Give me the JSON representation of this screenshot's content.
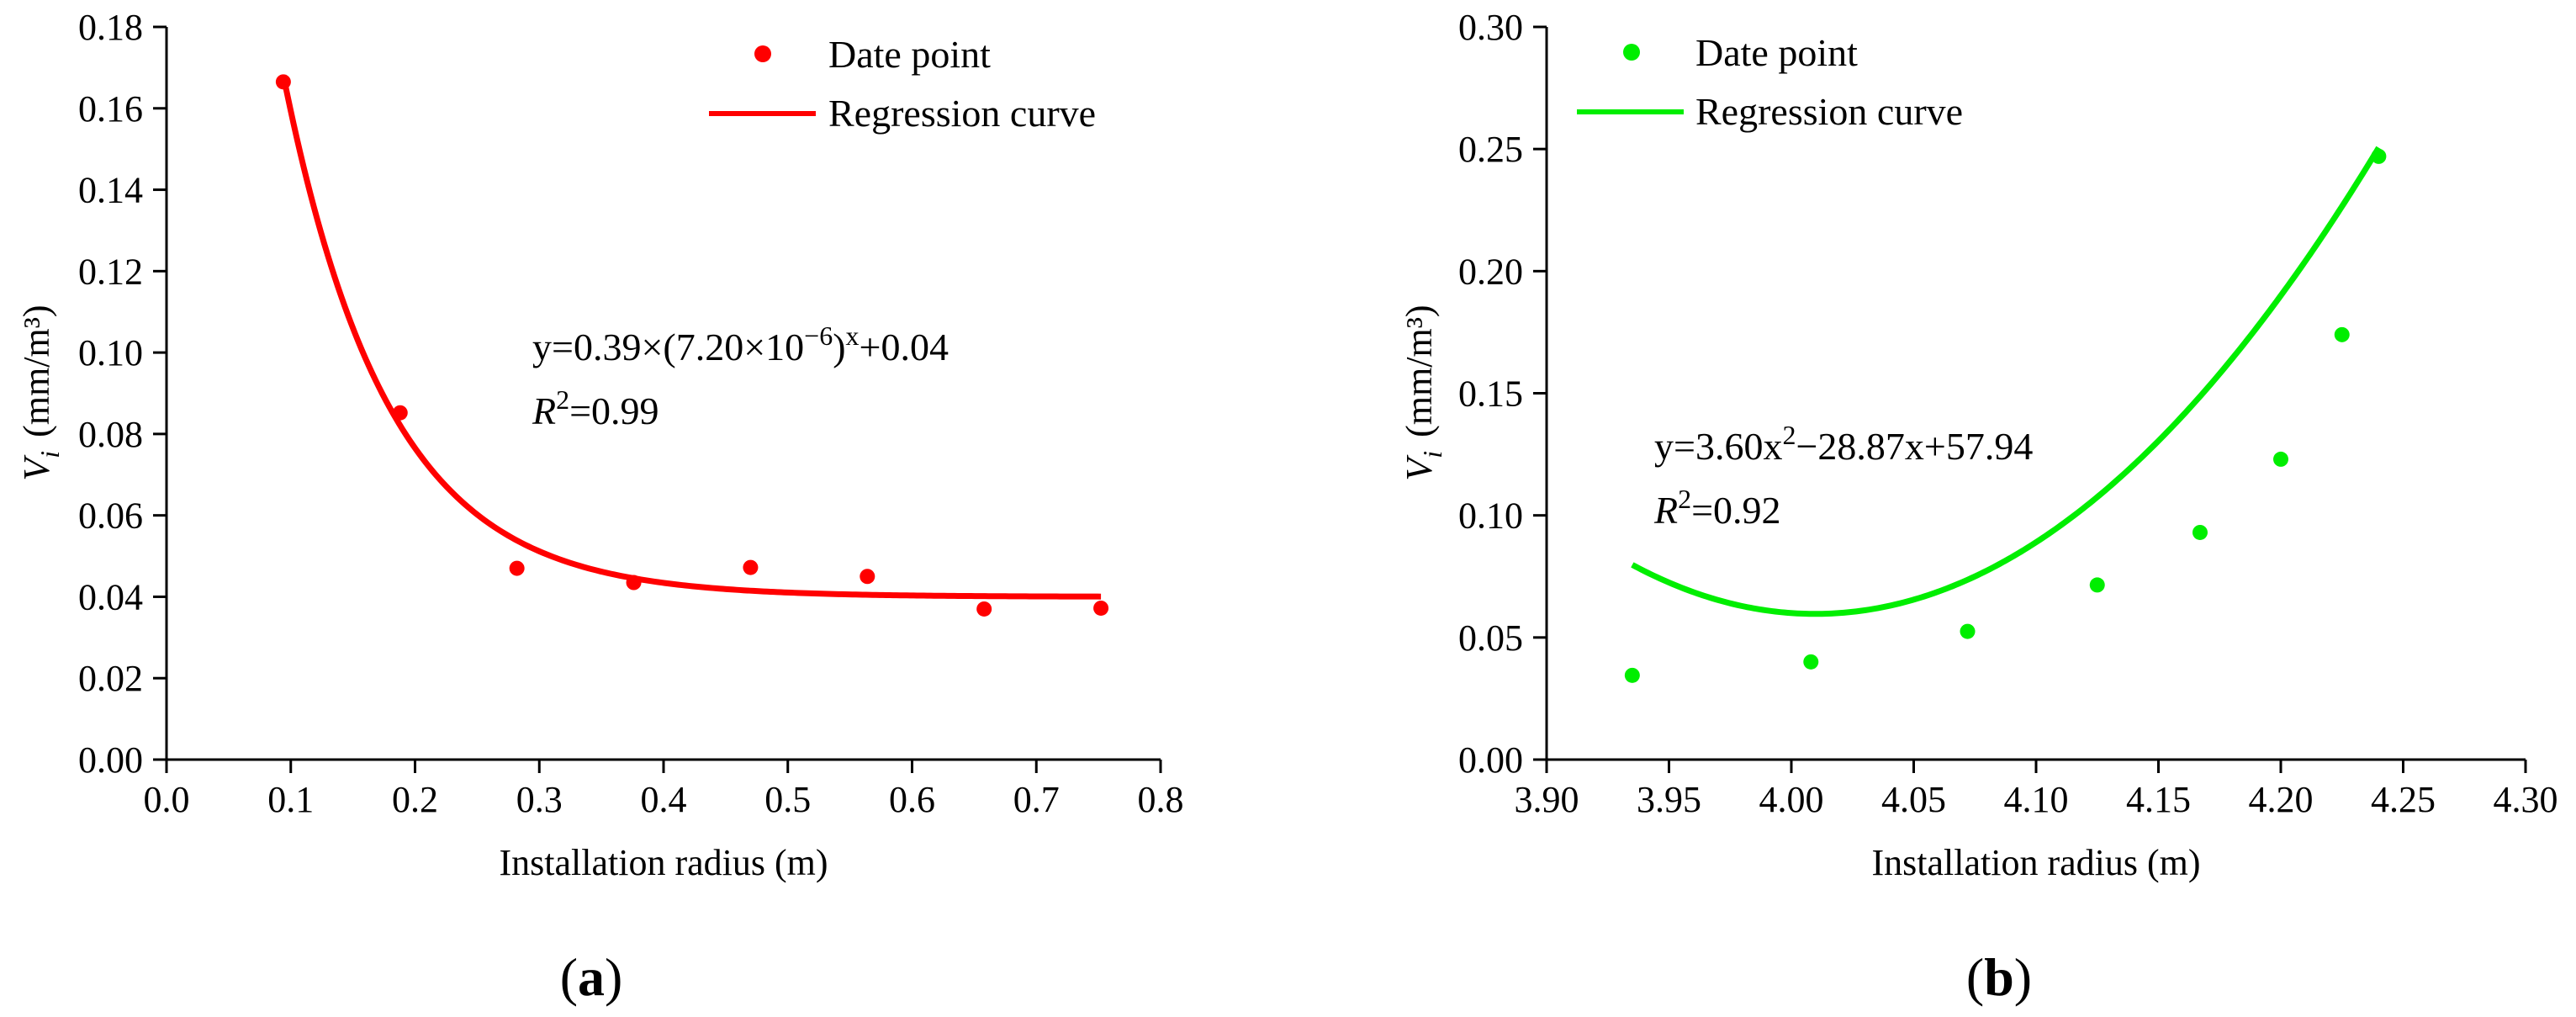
{
  "chart_data": [
    {
      "type": "scatter",
      "panel_label": "a",
      "color": "#ff0000",
      "xlabel": "Installation radius (m)",
      "ylabel": {
        "var": "V",
        "sub": "i",
        "unit": "(mm/m³)"
      },
      "xlim": [
        0.0,
        0.8
      ],
      "ylim": [
        0.0,
        0.18
      ],
      "xticks": [
        0.0,
        0.1,
        0.2,
        0.3,
        0.4,
        0.5,
        0.6,
        0.7,
        0.8
      ],
      "yticks": [
        0.0,
        0.02,
        0.04,
        0.06,
        0.08,
        0.1,
        0.12,
        0.14,
        0.16,
        0.18
      ],
      "xtick_labels": [
        "0.0",
        "0.1",
        "0.2",
        "0.3",
        "0.4",
        "0.5",
        "0.6",
        "0.7",
        "0.8"
      ],
      "ytick_labels": [
        "0.00",
        "0.02",
        "0.04",
        "0.06",
        "0.08",
        "0.10",
        "0.12",
        "0.14",
        "0.16",
        "0.18"
      ],
      "legend": {
        "position": "top-right",
        "points_label": "Date point",
        "curve_label": "Regression curve"
      },
      "points": [
        [
          0.094,
          0.1665
        ],
        [
          0.188,
          0.0852
        ],
        [
          0.282,
          0.047
        ],
        [
          0.376,
          0.0435
        ],
        [
          0.47,
          0.0472
        ],
        [
          0.564,
          0.045
        ],
        [
          0.658,
          0.037
        ],
        [
          0.752,
          0.0372
        ]
      ],
      "curve": {
        "model": "exponential",
        "x_range": [
          0.094,
          0.752
        ],
        "params": {
          "a": 0.39,
          "b": 7.2e-06,
          "c": 0.04
        }
      },
      "annotation": {
        "eq_main": "y=0.39×(7.20×10",
        "eq_exp": "−6",
        "eq_after": ")",
        "eq_x": "x",
        "eq_tail": "+0.04",
        "r2_label": "R",
        "r2_exp": "2",
        "r2_value": "=0.99"
      }
    },
    {
      "type": "scatter",
      "panel_label": "b",
      "color": "#00ee00",
      "xlabel": "Installation radius (m)",
      "ylabel": {
        "var": "V",
        "sub": "i",
        "unit": "(mm/m³)"
      },
      "xlim": [
        3.9,
        4.3
      ],
      "ylim": [
        0.0,
        0.3
      ],
      "xticks": [
        3.9,
        3.95,
        4.0,
        4.05,
        4.1,
        4.15,
        4.2,
        4.25,
        4.3
      ],
      "yticks": [
        0.0,
        0.05,
        0.1,
        0.15,
        0.2,
        0.25,
        0.3
      ],
      "xtick_labels": [
        "3.90",
        "3.95",
        "4.00",
        "4.05",
        "4.10",
        "4.15",
        "4.20",
        "4.25",
        "4.30"
      ],
      "ytick_labels": [
        "0.00",
        "0.05",
        "0.10",
        "0.15",
        "0.20",
        "0.25",
        "0.30"
      ],
      "legend": {
        "position": "top-left",
        "points_label": "Date point",
        "curve_label": "Regression curve"
      },
      "points": [
        [
          3.935,
          0.0345
        ],
        [
          4.008,
          0.04
        ],
        [
          4.072,
          0.0525
        ],
        [
          4.125,
          0.0715
        ],
        [
          4.167,
          0.093
        ],
        [
          4.2,
          0.123
        ],
        [
          4.225,
          0.174
        ],
        [
          4.24,
          0.247
        ]
      ],
      "curve": {
        "model": "quadratic",
        "x_range": [
          3.935,
          4.24
        ],
        "params": {
          "a": 3.6,
          "b": -28.87,
          "c": 57.94
        }
      },
      "annotation": {
        "eq_main": "y=3.60x",
        "eq_exp": "2",
        "eq_tail": "−28.87x+57.94",
        "r2_label": "R",
        "r2_exp": "2",
        "r2_value": "=0.92"
      }
    }
  ]
}
